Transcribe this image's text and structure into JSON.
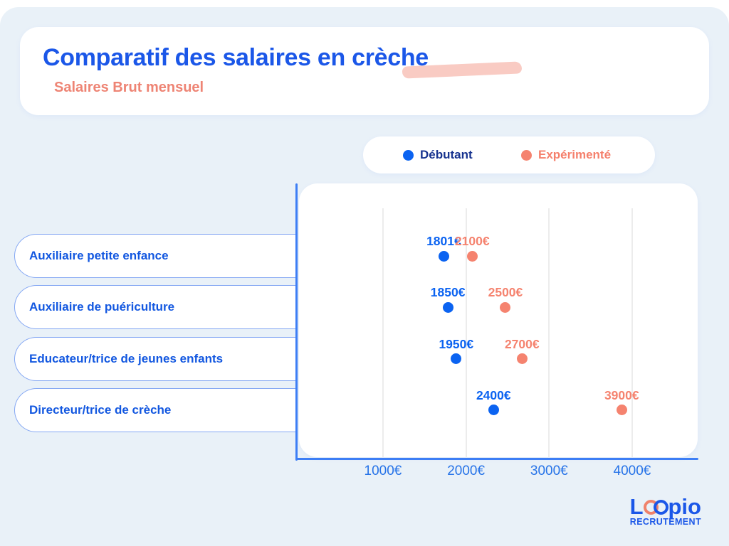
{
  "header": {
    "title": "Comparatif des salaires en crèche",
    "subtitle": "Salaires Brut mensuel"
  },
  "legend": {
    "items": [
      {
        "label": "Débutant",
        "dot_color": "#0b63f1",
        "text_color": "#17338f"
      },
      {
        "label": "Expérimenté",
        "dot_color": "#f5836f",
        "text_color": "#f5806c"
      }
    ]
  },
  "logo": {
    "brand_prefix": "L",
    "brand_suffix": "pio",
    "tagline": "RECRUTEMENT"
  },
  "colors": {
    "background": "#e9f1f8",
    "card": "#ffffff",
    "accent_blue": "#1b57e8",
    "accent_coral": "#f5836f",
    "axis_blue": "#3d7ef5",
    "gridline": "#ececec",
    "pill_border": "#84a7f3",
    "highlight_swoosh": "#f9cbc3"
  },
  "chart_data": {
    "type": "scatter",
    "title": "Comparatif des salaires en crèche",
    "subtitle": "Salaires Brut mensuel",
    "categories": [
      "Auxiliaire petite enfance",
      "Auxiliaire de puériculture",
      "Educateur/trice de jeunes enfants",
      "Directeur/trice de crèche"
    ],
    "series": [
      {
        "name": "Débutant",
        "color": "#0b63f1",
        "values": [
          1801,
          1850,
          1950,
          2400
        ],
        "point_labels": [
          "1801€",
          "1850€",
          "1950€",
          "2400€"
        ]
      },
      {
        "name": "Expérimenté",
        "color": "#f5836f",
        "values": [
          2100,
          2500,
          2700,
          3900
        ],
        "point_labels": [
          "2100€",
          "2500€",
          "2700€",
          "3900€"
        ]
      }
    ],
    "x_ticks": [
      {
        "value": 1000,
        "label": "1000€"
      },
      {
        "value": 2000,
        "label": "2000€"
      },
      {
        "value": 3000,
        "label": "3000€"
      },
      {
        "value": 4000,
        "label": "4000€"
      }
    ],
    "xlim": [
      0,
      4800
    ],
    "grid": "vertical",
    "legend_position": "top-right",
    "xlabel": "",
    "ylabel": ""
  }
}
